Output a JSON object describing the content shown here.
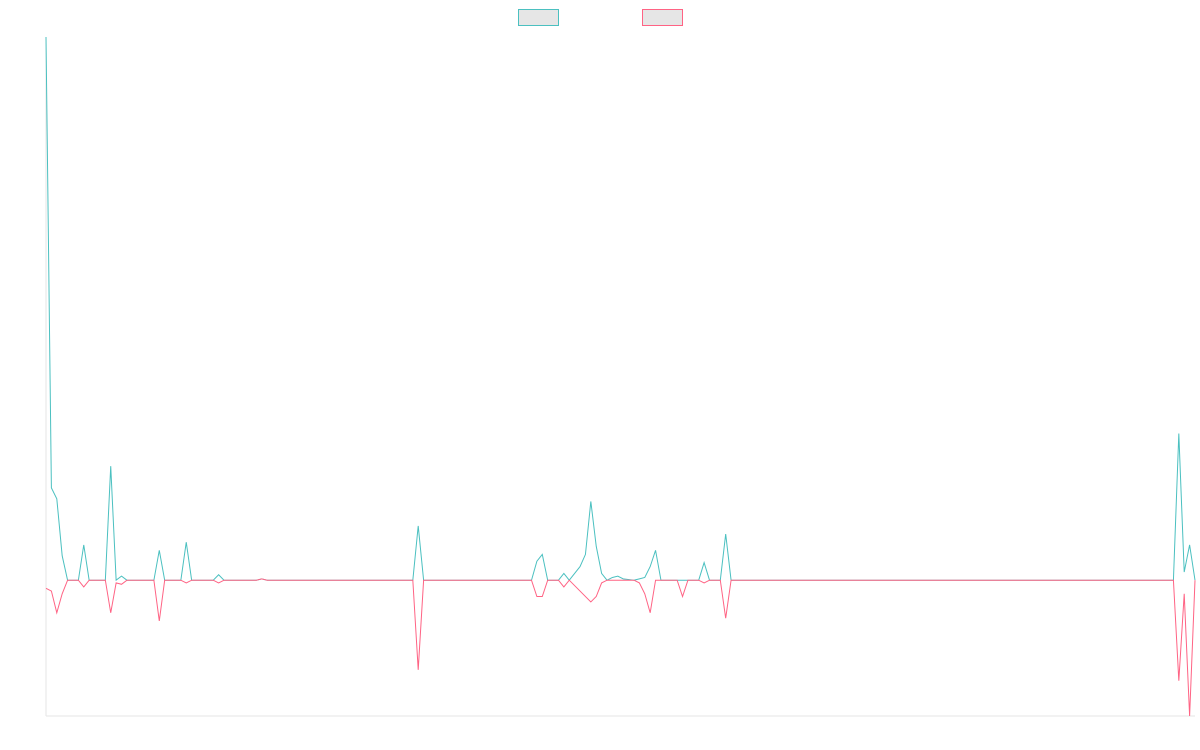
{
  "chart_data": {
    "type": "line",
    "title": "",
    "xlabel": "",
    "ylabel": "",
    "grid": false,
    "legend": "top-center",
    "x_count": 210,
    "ylim": [
      -100,
      400
    ],
    "colors": {
      "axis": "#e6e6e6",
      "swatch_fill": "#e6e6e6",
      "background": "#ffffff"
    },
    "series": [
      {
        "color": "#4bc0c0",
        "points": [
          [
            0,
            400
          ],
          [
            1,
            68
          ],
          [
            2,
            60
          ],
          [
            3,
            18
          ],
          [
            4,
            0
          ],
          [
            6,
            0
          ],
          [
            7,
            26
          ],
          [
            8,
            0
          ],
          [
            11,
            0
          ],
          [
            12,
            84
          ],
          [
            13,
            0
          ],
          [
            14,
            3
          ],
          [
            15,
            0
          ],
          [
            20,
            0
          ],
          [
            21,
            22
          ],
          [
            22,
            0
          ],
          [
            25,
            0
          ],
          [
            26,
            28
          ],
          [
            27,
            0
          ],
          [
            31,
            0
          ],
          [
            32,
            4
          ],
          [
            33,
            0
          ],
          [
            39,
            0
          ],
          [
            40,
            1
          ],
          [
            41,
            0
          ],
          [
            68,
            0
          ],
          [
            69,
            40
          ],
          [
            70,
            0
          ],
          [
            90,
            0
          ],
          [
            91,
            14
          ],
          [
            92,
            19
          ],
          [
            93,
            0
          ],
          [
            95,
            0
          ],
          [
            96,
            5
          ],
          [
            97,
            0
          ],
          [
            99,
            10
          ],
          [
            100,
            19
          ],
          [
            101,
            58
          ],
          [
            102,
            25
          ],
          [
            103,
            5
          ],
          [
            104,
            0
          ],
          [
            105,
            2
          ],
          [
            106,
            3
          ],
          [
            107,
            1
          ],
          [
            109,
            0
          ],
          [
            110,
            1
          ],
          [
            111,
            2
          ],
          [
            112,
            10
          ],
          [
            113,
            22
          ],
          [
            114,
            0
          ],
          [
            121,
            0
          ],
          [
            122,
            13
          ],
          [
            123,
            0
          ],
          [
            125,
            0
          ],
          [
            126,
            34
          ],
          [
            127,
            0
          ],
          [
            209,
            0
          ],
          [
            210,
            108
          ],
          [
            211,
            6
          ],
          [
            212,
            26
          ],
          [
            213,
            0
          ]
        ]
      },
      {
        "color": "#ff6384",
        "points": [
          [
            0,
            -6
          ],
          [
            1,
            -8
          ],
          [
            2,
            -24
          ],
          [
            3,
            -10
          ],
          [
            4,
            0
          ],
          [
            6,
            0
          ],
          [
            7,
            -5
          ],
          [
            8,
            0
          ],
          [
            11,
            0
          ],
          [
            12,
            -24
          ],
          [
            13,
            -2
          ],
          [
            14,
            -3
          ],
          [
            15,
            0
          ],
          [
            20,
            0
          ],
          [
            21,
            -30
          ],
          [
            22,
            0
          ],
          [
            25,
            0
          ],
          [
            26,
            -2
          ],
          [
            27,
            0
          ],
          [
            31,
            0
          ],
          [
            32,
            -2
          ],
          [
            33,
            0
          ],
          [
            39,
            0
          ],
          [
            40,
            1
          ],
          [
            41,
            0
          ],
          [
            68,
            0
          ],
          [
            69,
            -66
          ],
          [
            70,
            0
          ],
          [
            90,
            0
          ],
          [
            91,
            -12
          ],
          [
            92,
            -12
          ],
          [
            93,
            0
          ],
          [
            95,
            0
          ],
          [
            96,
            -5
          ],
          [
            97,
            0
          ],
          [
            101,
            -16
          ],
          [
            102,
            -12
          ],
          [
            103,
            -2
          ],
          [
            104,
            0
          ],
          [
            109,
            0
          ],
          [
            110,
            -2
          ],
          [
            111,
            -10
          ],
          [
            112,
            -24
          ],
          [
            113,
            0
          ],
          [
            117,
            0
          ],
          [
            118,
            -12
          ],
          [
            119,
            0
          ],
          [
            121,
            0
          ],
          [
            122,
            -2
          ],
          [
            123,
            0
          ],
          [
            125,
            0
          ],
          [
            126,
            -28
          ],
          [
            127,
            0
          ],
          [
            209,
            0
          ],
          [
            210,
            -74
          ],
          [
            211,
            -10
          ],
          [
            212,
            -100
          ],
          [
            213,
            0
          ]
        ]
      }
    ]
  }
}
